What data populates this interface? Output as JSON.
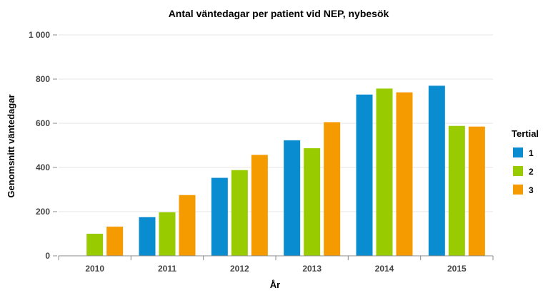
{
  "chart_data": {
    "type": "bar",
    "title": "Antal väntedagar per patient vid NEP, nybesök",
    "xlabel": "År",
    "ylabel": "Genomsnitt väntedagar",
    "categories": [
      "2010",
      "2011",
      "2012",
      "2013",
      "2014",
      "2015"
    ],
    "ylim": [
      0,
      1000
    ],
    "yticks": [
      0,
      200,
      400,
      600,
      800,
      1000
    ],
    "ytick_labels": [
      "0",
      "200",
      "400",
      "600",
      "800",
      "1 000"
    ],
    "grid": true,
    "legend": {
      "title": "Tertial",
      "position": "right"
    },
    "series": [
      {
        "name": "1",
        "color": "#0a8dd0",
        "values": [
          null,
          175,
          353,
          523,
          730,
          770
        ]
      },
      {
        "name": "2",
        "color": "#99cc00",
        "values": [
          100,
          197,
          388,
          487,
          757,
          588
        ]
      },
      {
        "name": "3",
        "color": "#f59b00",
        "values": [
          132,
          275,
          457,
          605,
          740,
          585
        ]
      }
    ]
  }
}
